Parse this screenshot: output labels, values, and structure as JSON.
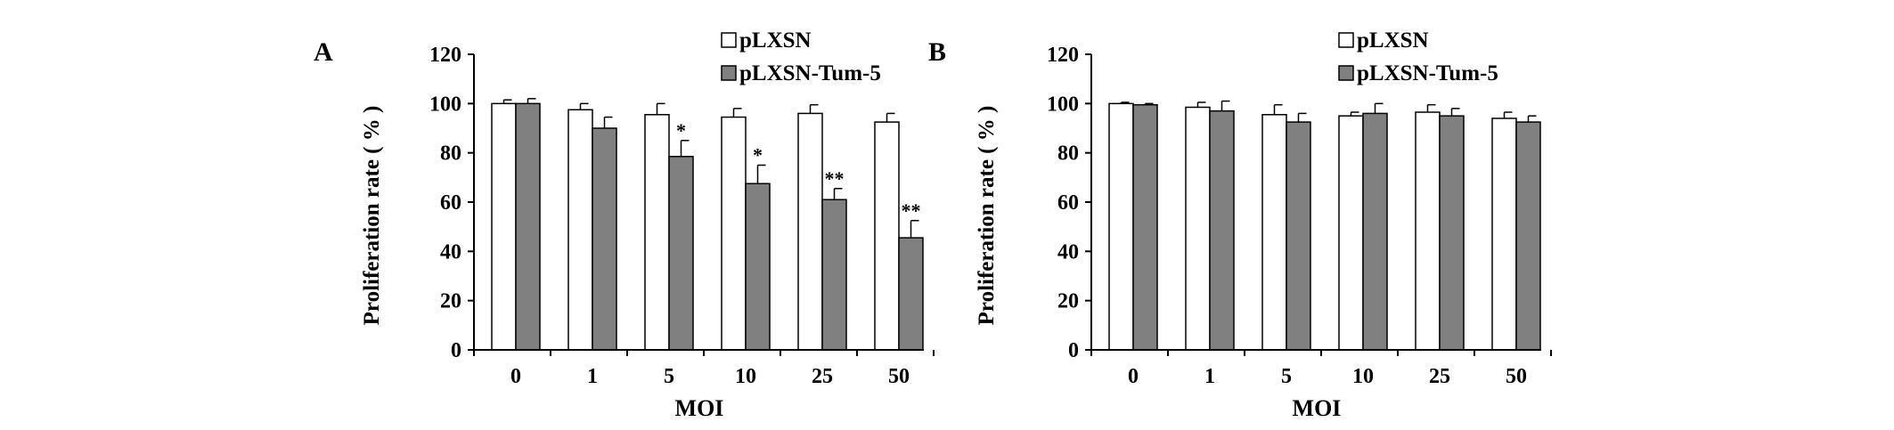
{
  "chart_data": [
    {
      "type": "bar",
      "panel_label": "A",
      "xlabel": "MOI",
      "ylabel": "Proliferation  rate ( % )",
      "categories": [
        "0",
        "1",
        "5",
        "10",
        "25",
        "50"
      ],
      "ylim": [
        0,
        120
      ],
      "yticks": [
        "0",
        "20",
        "40",
        "60",
        "80",
        "100",
        "120"
      ],
      "grid": false,
      "legend_position": "top-right",
      "series": [
        {
          "name": "pLXSN",
          "color": "#ffffff",
          "values": [
            100,
            97.5,
            95.5,
            94.5,
            96,
            92.5
          ],
          "errors": [
            1.5,
            2.5,
            4.5,
            3.5,
            3.5,
            3.5
          ]
        },
        {
          "name": "pLXSN-Tum-5",
          "color": "#808080",
          "values": [
            100,
            90,
            78.5,
            67.5,
            61,
            45.5
          ],
          "errors": [
            2,
            4.5,
            6.5,
            7.5,
            4.5,
            7
          ]
        }
      ],
      "significance": [
        "",
        "",
        "*",
        "*",
        "**",
        "**"
      ]
    },
    {
      "type": "bar",
      "panel_label": "B",
      "xlabel": "MOI",
      "ylabel": "Proliferation  rate ( % )",
      "categories": [
        "0",
        "1",
        "5",
        "10",
        "25",
        "50"
      ],
      "ylim": [
        0,
        120
      ],
      "yticks": [
        "0",
        "20",
        "40",
        "60",
        "80",
        "100",
        "120"
      ],
      "grid": false,
      "legend_position": "top-right",
      "series": [
        {
          "name": "pLXSN",
          "color": "#ffffff",
          "values": [
            100,
            98.5,
            95.5,
            95,
            96.5,
            94
          ],
          "errors": [
            0.5,
            2,
            4,
            1.5,
            3,
            2.5
          ]
        },
        {
          "name": "pLXSN-Tum-5",
          "color": "#808080",
          "values": [
            99.5,
            97,
            92.5,
            96,
            95,
            92.5
          ],
          "errors": [
            0.5,
            4,
            3.5,
            4,
            3,
            2.5
          ]
        }
      ],
      "significance": [
        "",
        "",
        "",
        "",
        "",
        ""
      ]
    }
  ]
}
